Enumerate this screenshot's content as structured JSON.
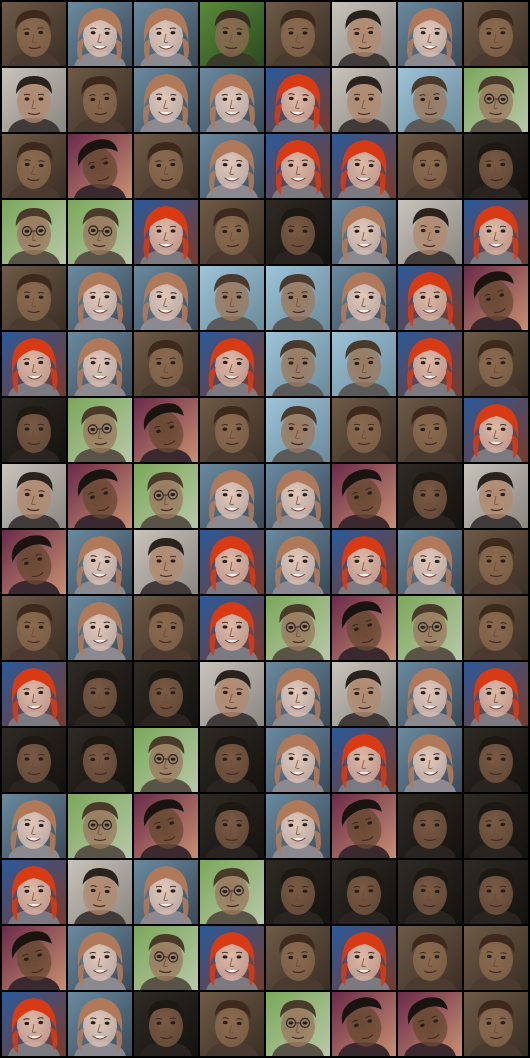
{
  "grid": {
    "columns": 8,
    "rows": 16,
    "tiles": [
      [
        "male-brown-a",
        "female-light",
        "female-light",
        "male-green-bg",
        "male-brown-a",
        "male-dark-hair",
        "female-light",
        "male-brown-a"
      ],
      [
        "male-dark-hair",
        "male-brown-a",
        "female-light",
        "female-light",
        "female-red",
        "male-dark-hair",
        "male-light-bg",
        "male-glasses-green"
      ],
      [
        "male-brown-a",
        "male-dark-tilted",
        "male-brown-a",
        "female-light",
        "female-red",
        "female-red",
        "male-brown-a",
        "male-dark-b"
      ],
      [
        "male-glasses-green",
        "male-glasses-green",
        "female-red",
        "male-brown-a",
        "male-dark-b",
        "female-light",
        "male-dark-hair",
        "female-red"
      ],
      [
        "male-brown-a",
        "female-light",
        "female-light",
        "male-light-bg",
        "male-light-bg",
        "female-light",
        "female-red",
        "male-dark-tilted"
      ],
      [
        "female-red",
        "female-light",
        "male-brown-a",
        "female-red",
        "male-light-bg",
        "male-light-bg",
        "female-red",
        "male-brown-a"
      ],
      [
        "male-dark-b",
        "male-glasses-green",
        "male-dark-tilted",
        "male-brown-a",
        "male-light-bg",
        "male-brown-a",
        "male-brown-a",
        "female-red"
      ],
      [
        "male-dark-hair",
        "male-dark-tilted",
        "male-glasses-green",
        "female-light",
        "female-light",
        "male-dark-tilted",
        "male-dark-b",
        "male-dark-hair"
      ],
      [
        "male-dark-tilted",
        "female-light",
        "male-dark-hair",
        "female-red",
        "female-light",
        "female-red",
        "female-light",
        "male-brown-a"
      ],
      [
        "male-brown-a",
        "female-light",
        "male-brown-a",
        "female-red",
        "male-glasses-green",
        "male-dark-tilted",
        "male-glasses-green",
        "male-brown-a"
      ],
      [
        "female-red",
        "male-dark-b",
        "male-dark-b",
        "male-dark-hair",
        "female-light",
        "male-dark-hair",
        "female-light",
        "female-red"
      ],
      [
        "male-dark-b",
        "male-dark-b",
        "male-glasses-green",
        "male-dark-b",
        "female-light",
        "female-red",
        "female-light",
        "male-dark-b"
      ],
      [
        "female-light",
        "male-glasses-green",
        "male-dark-tilted",
        "male-dark-b",
        "female-light",
        "male-dark-tilted",
        "male-dark-b",
        "male-dark-b"
      ],
      [
        "female-red",
        "male-dark-hair",
        "female-light",
        "male-glasses-green",
        "male-dark-b",
        "male-dark-b",
        "male-dark-b",
        "male-dark-b"
      ],
      [
        "male-dark-tilted",
        "female-light",
        "male-glasses-green",
        "female-red",
        "male-brown-a",
        "female-red",
        "male-brown-a",
        "male-brown-a"
      ],
      [
        "female-red",
        "female-light",
        "male-dark-b",
        "male-brown-a",
        "male-glasses-green",
        "male-dark-tilted",
        "male-dark-tilted",
        "male-brown-a"
      ]
    ]
  },
  "styles": {
    "male-brown-a": {
      "bg1": "#6e5a46",
      "bg2": "#3a2e24",
      "skin": "#8a6a4e",
      "hair": "#3e2a1c",
      "shirt": "#4a3a30",
      "icon": "face-icon"
    },
    "female-light": {
      "bg1": "#6a8aa0",
      "bg2": "#3a4a58",
      "skin": "#e2c6b8",
      "hair": "#b07a5a",
      "shirt": "#8a8a90",
      "icon": "face-icon"
    },
    "female-red": {
      "bg1": "#2a5a9a",
      "bg2": "#7a3a2a",
      "skin": "#e0b8a4",
      "hair": "#d83a14",
      "shirt": "#7a7a80",
      "icon": "face-icon"
    },
    "male-dark-hair": {
      "bg1": "#c8c4bc",
      "bg2": "#8a8680",
      "skin": "#b08a70",
      "hair": "#2a221c",
      "shirt": "#403a38",
      "icon": "face-icon"
    },
    "male-green-bg": {
      "bg1": "#5a8a3a",
      "bg2": "#2a4a20",
      "skin": "#8a6a50",
      "hair": "#3a2a20",
      "shirt": "#3a3a2a",
      "icon": "face-icon"
    },
    "male-light-bg": {
      "bg1": "#9ec4d8",
      "bg2": "#6a8a9a",
      "skin": "#9a7a60",
      "hair": "#4a3a2c",
      "shirt": "#5a5a58",
      "icon": "face-icon"
    },
    "male-glasses-green": {
      "bg1": "#7aa85a",
      "bg2": "#b8c8a8",
      "skin": "#9a7a60",
      "hair": "#4a3a2a",
      "shirt": "#5a5448",
      "icon": "face-icon"
    },
    "male-dark-b": {
      "bg1": "#2e2a24",
      "bg2": "#14120e",
      "skin": "#7a5a44",
      "hair": "#1e1812",
      "shirt": "#2a2420",
      "icon": "face-icon"
    },
    "male-dark-tilted": {
      "bg1": "#6a2a4a",
      "bg2": "#c89070",
      "skin": "#6a4a34",
      "hair": "#1a1410",
      "shirt": "#3a2a30",
      "icon": "face-icon"
    }
  }
}
